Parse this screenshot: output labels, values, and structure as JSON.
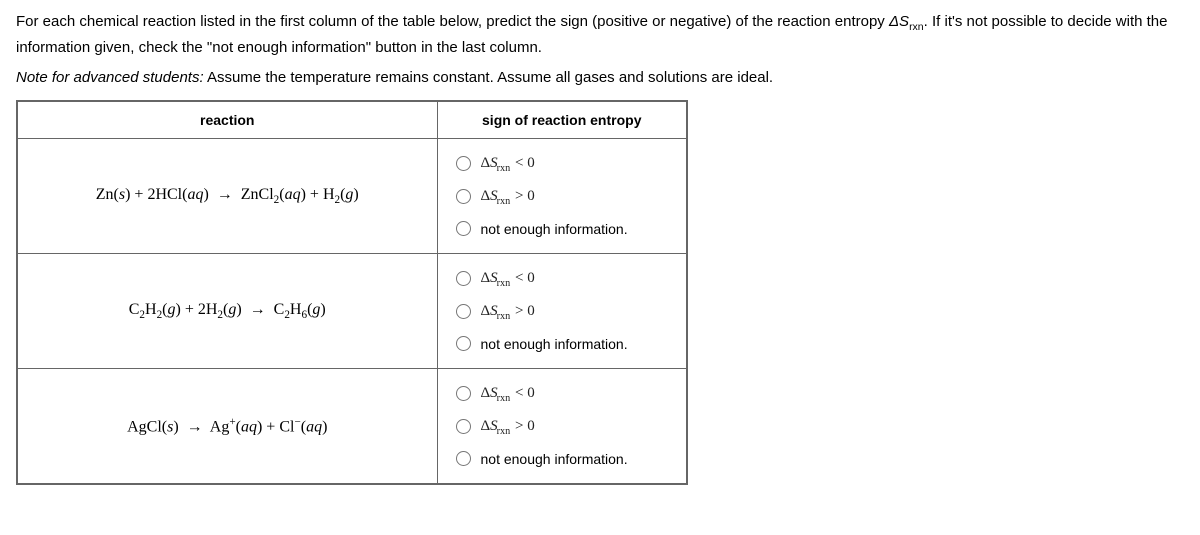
{
  "instructions_part1": "For each chemical reaction listed in the first column of the table below, predict the sign (positive or negative) of the reaction entropy ",
  "instructions_deltaS": "ΔS",
  "instructions_rxn_sub": "rxn",
  "instructions_part2": ". If it's not possible to decide with the information given, check the \"not enough information\" button in the last column.",
  "note_prefix": "Note for advanced students:",
  "note_body": " Assume the temperature remains constant. Assume all gases and solutions are ideal.",
  "headers": {
    "reaction": "reaction",
    "sign": "sign of reaction entropy"
  },
  "opts": {
    "lt": " < 0",
    "gt": " > 0",
    "nei": "not enough information."
  },
  "delta_sym": "Δ",
  "S_sym": "S",
  "rxn_sub": "rxn"
}
